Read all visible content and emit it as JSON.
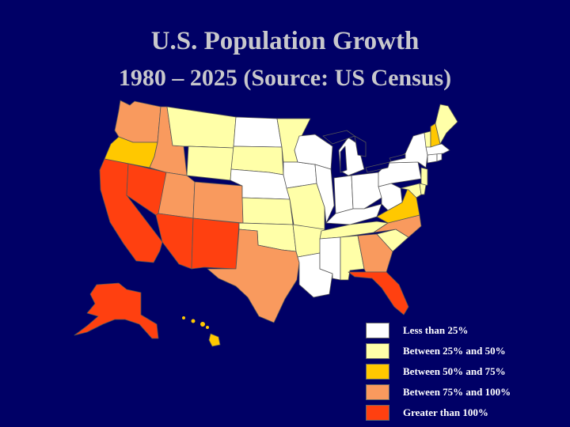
{
  "title": {
    "line1": "U.S. Population Growth",
    "line2": "1980 – 2025  (Source: US Census)"
  },
  "colors": {
    "background": "#000066",
    "title_text": "#c8c8cc",
    "legend_text": "#ffffff",
    "water": "#000066",
    "state_border": "#555555"
  },
  "legend": [
    {
      "key": "lt25",
      "label": "Less than 25%",
      "color": "#ffffff"
    },
    {
      "key": "25_50",
      "label": "Between 25% and 50%",
      "color": "#ffffa8"
    },
    {
      "key": "50_75",
      "label": "Between 50% and 75%",
      "color": "#ffc800"
    },
    {
      "key": "75_100",
      "label": "Between 75% and 100%",
      "color": "#f99a5e"
    },
    {
      "key": "gt100",
      "label": "Greater than 100%",
      "color": "#ff4010"
    }
  ],
  "states": {
    "WA": "75_100",
    "OR": "50_75",
    "CA": "gt100",
    "NV": "gt100",
    "ID": "75_100",
    "MT": "25_50",
    "WY": "25_50",
    "UT": "75_100",
    "CO": "75_100",
    "AZ": "gt100",
    "NM": "gt100",
    "ND": "lt25",
    "SD": "25_50",
    "NE": "lt25",
    "KS": "25_50",
    "OK": "25_50",
    "TX": "75_100",
    "MN": "25_50",
    "IA": "lt25",
    "MO": "25_50",
    "AR": "25_50",
    "LA": "lt25",
    "WI": "lt25",
    "IL": "lt25",
    "MI": "lt25",
    "IN": "lt25",
    "OH": "lt25",
    "KY": "lt25",
    "TN": "25_50",
    "MS": "lt25",
    "AL": "25_50",
    "GA": "75_100",
    "FL": "gt100",
    "SC": "25_50",
    "NC": "75_100",
    "VA": "50_75",
    "WV": "lt25",
    "PA": "lt25",
    "NY": "lt25",
    "ME": "25_50",
    "VT": "25_50",
    "NH": "50_75",
    "MA": "lt25",
    "RI": "lt25",
    "CT": "lt25",
    "NJ": "25_50",
    "DE": "25_50",
    "MD": "25_50",
    "AK": "gt100",
    "HI": "50_75"
  }
}
